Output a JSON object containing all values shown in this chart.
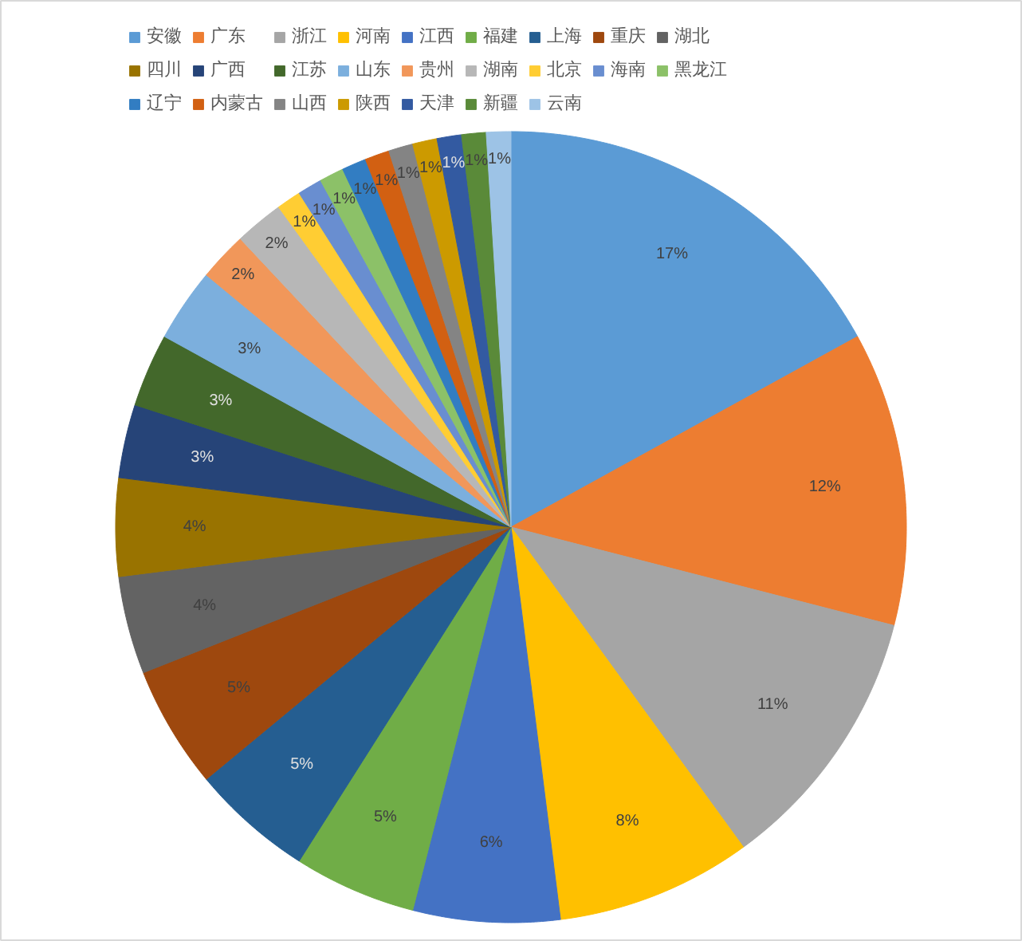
{
  "chart_data": {
    "type": "pie",
    "categories": [
      "安徽",
      "广东",
      "浙江",
      "河南",
      "江西",
      "福建",
      "上海",
      "重庆",
      "湖北",
      "四川",
      "广西",
      "江苏",
      "山东",
      "贵州",
      "湖南",
      "北京",
      "海南",
      "黑龙江",
      "辽宁",
      "内蒙古",
      "山西",
      "陕西",
      "天津",
      "新疆",
      "云南"
    ],
    "values": [
      17,
      12,
      11,
      8,
      6,
      5,
      5,
      5,
      4,
      4,
      3,
      3,
      3,
      2,
      2,
      1,
      1,
      1,
      1,
      1,
      1,
      1,
      1,
      1,
      1
    ],
    "value_labels": [
      "17%",
      "12%",
      "11%",
      "8%",
      "6%",
      "5%",
      "5%",
      "5%",
      "4%",
      "4%",
      "3%",
      "3%",
      "3%",
      "2%",
      "2%",
      "1%",
      "1%",
      "1%",
      "1%",
      "1%",
      "1%",
      "1%",
      "1%",
      "1%",
      "1%"
    ],
    "colors": [
      "#5b9bd5",
      "#ed7d31",
      "#a5a5a5",
      "#ffc000",
      "#4472c4",
      "#70ad47",
      "#255e91",
      "#9e480e",
      "#636363",
      "#997300",
      "#264478",
      "#43682b",
      "#7cafdd",
      "#f1975a",
      "#b7b7b7",
      "#ffcd33",
      "#698ed0",
      "#8cc168",
      "#327dc2",
      "#d26012",
      "#848484",
      "#cc9a00",
      "#335aa1",
      "#5a8a39",
      "#9dc3e6"
    ],
    "legend": "top"
  }
}
